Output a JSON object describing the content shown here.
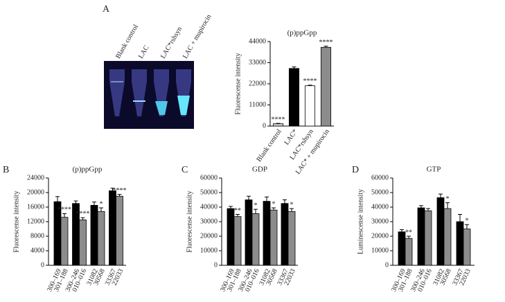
{
  "photo": {
    "labels": [
      "Blank control",
      "LAC",
      "LAC*rshsyn",
      "LAC + mupirocin"
    ]
  },
  "chart_data": [
    {
      "type": "bar",
      "panel": "A",
      "title": "(p)ppGpp",
      "y_label": "Fluorescense intensity",
      "categories": [
        "Blank control",
        "LAC*",
        "LAC*rshsyn",
        "LAC* + mupirocin"
      ],
      "values": [
        1200,
        30000,
        21000,
        41000
      ],
      "errors": [
        200,
        800,
        300,
        600
      ],
      "colors": [
        "#d0d0d0",
        "#000000",
        "#ffffff",
        "#8c8c8c"
      ],
      "annotations": [
        "****",
        null,
        "****",
        "****"
      ],
      "ylim": [
        0,
        44000
      ],
      "yticks": [
        0,
        11000,
        22000,
        33000,
        44000
      ]
    },
    {
      "type": "bar",
      "panel": "B",
      "title": "(p)ppGpp",
      "y_label": "Fluorescense intensity",
      "categories": [
        "300–169",
        "301–188",
        "300–246",
        "010–016",
        "31082",
        "30568",
        "33367",
        "22033"
      ],
      "values": [
        17500,
        13200,
        17000,
        12500,
        16500,
        14800,
        20500,
        19000
      ],
      "errors": [
        1400,
        1000,
        700,
        600,
        900,
        1000,
        700,
        500
      ],
      "colors": [
        "#000000",
        "#8c8c8c",
        "#000000",
        "#8c8c8c",
        "#000000",
        "#8c8c8c",
        "#000000",
        "#8c8c8c"
      ],
      "annotations": [
        null,
        "****",
        null,
        "****",
        null,
        "*",
        null,
        "****"
      ],
      "ylim": [
        0,
        24000
      ],
      "yticks": [
        0,
        4000,
        8000,
        12000,
        16000,
        20000,
        24000
      ]
    },
    {
      "type": "bar",
      "panel": "C",
      "title": "GDP",
      "y_label": "Fluorescense intensity",
      "categories": [
        "300–169",
        "301–188",
        "300–246",
        "010–016",
        "31082",
        "30568",
        "33367",
        "22033"
      ],
      "values": [
        39000,
        33500,
        45000,
        35500,
        44000,
        38000,
        42500,
        37000
      ],
      "errors": [
        1500,
        1500,
        2500,
        3000,
        3000,
        1500,
        2500,
        2000
      ],
      "colors": [
        "#000000",
        "#8c8c8c",
        "#000000",
        "#8c8c8c",
        "#000000",
        "#8c8c8c",
        "#000000",
        "#8c8c8c"
      ],
      "annotations": [
        null,
        "**",
        null,
        "*",
        null,
        "*",
        null,
        "*"
      ],
      "ylim": [
        0,
        60000
      ],
      "yticks": [
        0,
        10000,
        20000,
        30000,
        40000,
        50000,
        60000
      ]
    },
    {
      "type": "bar",
      "panel": "D",
      "title": "GTP",
      "y_label": "Luminescense intensity",
      "categories": [
        "300–169",
        "301–188",
        "300–246",
        "010–016",
        "31082",
        "30568",
        "33367",
        "22033"
      ],
      "values": [
        23000,
        18500,
        39500,
        37500,
        46500,
        39000,
        30000,
        25000
      ],
      "errors": [
        1500,
        1500,
        1500,
        1500,
        2500,
        4000,
        5000,
        3000
      ],
      "colors": [
        "#000000",
        "#8c8c8c",
        "#000000",
        "#8c8c8c",
        "#000000",
        "#8c8c8c",
        "#000000",
        "#8c8c8c"
      ],
      "annotations": [
        null,
        "**",
        null,
        null,
        null,
        "*",
        null,
        "*"
      ],
      "ylim": [
        0,
        60000
      ],
      "yticks": [
        0,
        10000,
        20000,
        30000,
        40000,
        50000,
        60000
      ]
    }
  ]
}
